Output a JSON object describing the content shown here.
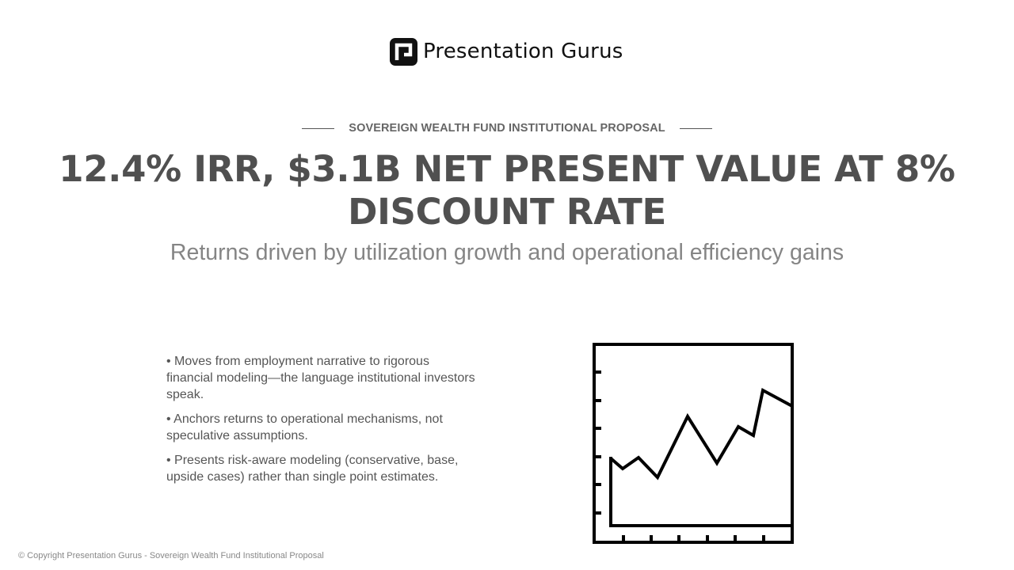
{
  "brand": {
    "logo_icon": "presentation-gurus-logo-icon",
    "name": "Presentation Gurus"
  },
  "slide": {
    "eyebrow": "SOVEREIGN WEALTH FUND INSTITUTIONAL PROPOSAL",
    "title": "12.4% IRR, $3.1B NET PRESENT VALUE AT 8% DISCOUNT RATE",
    "subtitle": "Returns driven by utilization growth and operational efficiency gains",
    "bullets": [
      "• Moves from employment narrative to rigorous financial modeling—the language institutional investors speak.",
      "• Anchors returns to operational mechanisms, not speculative assumptions.",
      "• Presents risk-aware modeling (conservative, base, upside cases) rather than single point estimates."
    ],
    "illustration": "line-chart-icon"
  },
  "footer": {
    "copyright": "© Copyright Presentation Gurus - Sovereign Wealth Fund Institutional Proposal"
  },
  "colors": {
    "title": "#505050",
    "subtitle": "#858585",
    "body_text": "#555555",
    "logo": "#111111",
    "icon_stroke": "#000000",
    "background": "#ffffff"
  }
}
